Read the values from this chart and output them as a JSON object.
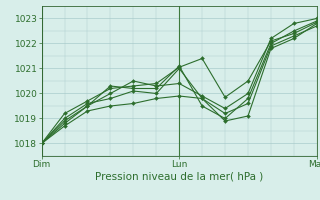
{
  "title": "Pression niveau de la mer( hPa )",
  "bg_color": "#d8eeea",
  "grid_color": "#aacccc",
  "line_color": "#2d6e2d",
  "xlim": [
    0,
    48
  ],
  "ylim": [
    1017.5,
    1023.5
  ],
  "yticks": [
    1018,
    1019,
    1020,
    1021,
    1022,
    1023
  ],
  "xtick_labels": [
    "Dim",
    "Lun",
    "Mar"
  ],
  "xtick_positions": [
    0,
    24,
    48
  ],
  "series": [
    [
      0,
      1018.0,
      4,
      1018.7,
      8,
      1019.3,
      12,
      1019.5,
      16,
      1019.6,
      20,
      1019.8,
      24,
      1019.9,
      28,
      1019.8,
      32,
      1018.9,
      36,
      1019.1,
      40,
      1021.8,
      44,
      1022.2,
      48,
      1022.8
    ],
    [
      0,
      1018.0,
      4,
      1018.8,
      8,
      1019.5,
      12,
      1020.3,
      16,
      1020.2,
      20,
      1020.2,
      24,
      1021.1,
      28,
      1019.5,
      32,
      1019.0,
      36,
      1019.8,
      40,
      1022.0,
      44,
      1022.5,
      48,
      1022.9
    ],
    [
      0,
      1018.0,
      4,
      1018.9,
      8,
      1019.5,
      12,
      1020.0,
      16,
      1020.5,
      20,
      1020.3,
      24,
      1020.4,
      28,
      1019.9,
      32,
      1019.4,
      36,
      1020.0,
      40,
      1022.2,
      44,
      1022.8,
      48,
      1023.0
    ],
    [
      0,
      1018.0,
      4,
      1019.2,
      8,
      1019.7,
      12,
      1020.2,
      16,
      1020.3,
      20,
      1020.4,
      24,
      1021.05,
      28,
      1021.4,
      32,
      1019.85,
      36,
      1020.5,
      40,
      1022.1,
      44,
      1022.4,
      48,
      1022.85
    ],
    [
      0,
      1018.0,
      4,
      1019.0,
      8,
      1019.6,
      12,
      1019.8,
      16,
      1020.1,
      20,
      1020.0,
      24,
      1021.0,
      28,
      1019.8,
      32,
      1019.2,
      36,
      1019.6,
      40,
      1021.9,
      44,
      1022.3,
      48,
      1022.7
    ]
  ],
  "title_fontsize": 7.5,
  "tick_fontsize": 6.5,
  "marker_size": 2.0,
  "line_width": 0.8
}
